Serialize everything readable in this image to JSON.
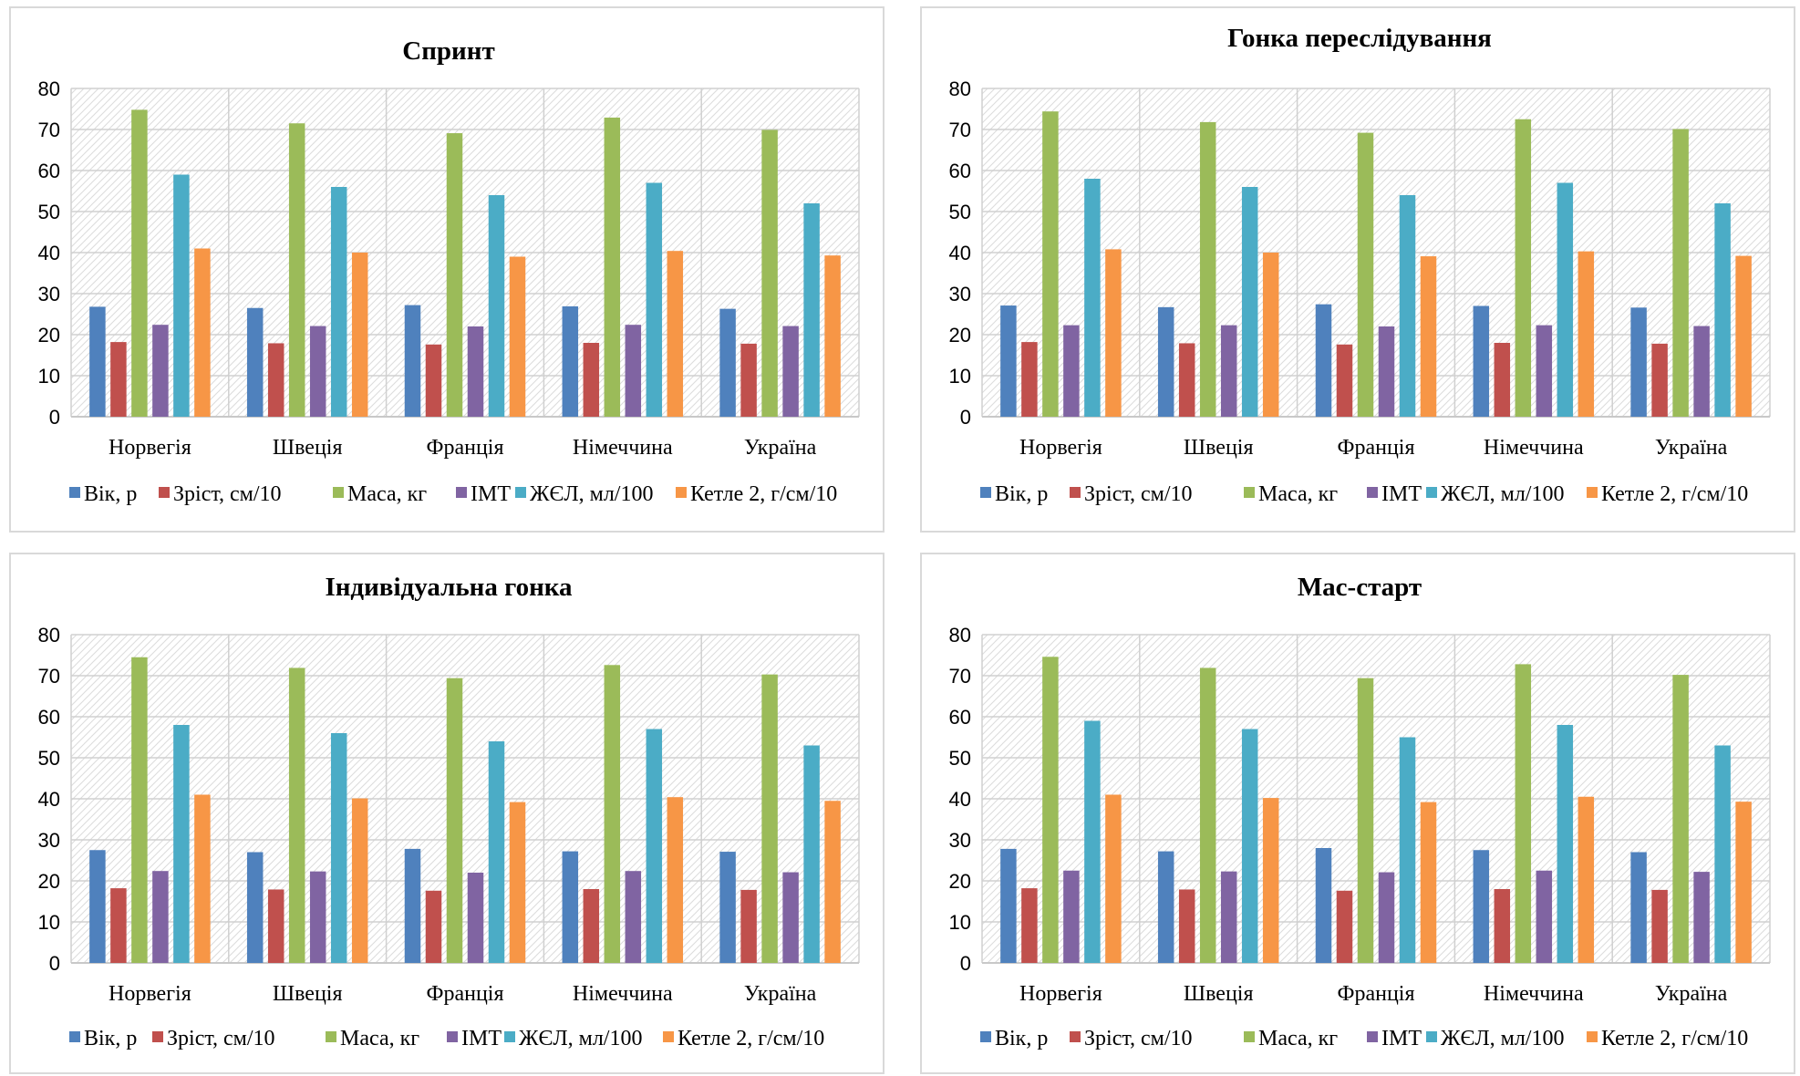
{
  "legend": [
    "Вік, р",
    "Зріст, см/10",
    "Маса, кг",
    "ІМТ",
    "ЖЄЛ, мл/100",
    "Кетле 2, г/см/10"
  ],
  "colors": [
    "#4f81bd",
    "#c0504d",
    "#9bbb59",
    "#8064a2",
    "#4bacc6",
    "#f79646"
  ],
  "chart_data": [
    {
      "type": "bar",
      "title": "Спринт",
      "categories": [
        "Норвегія",
        "Швеція",
        "Франція",
        "Німеччина",
        "Україна"
      ],
      "ylim": [
        0,
        80
      ],
      "yticks": [
        0,
        10,
        20,
        30,
        40,
        50,
        60,
        70,
        80
      ],
      "legend_position": "bottom",
      "series": [
        {
          "name": "Вік, р",
          "values": [
            26.8,
            26.5,
            27.2,
            26.9,
            26.3
          ]
        },
        {
          "name": "Зріст, см/10",
          "values": [
            18.2,
            17.9,
            17.6,
            18.0,
            17.8
          ]
        },
        {
          "name": "Маса, кг",
          "values": [
            74.8,
            71.5,
            69.1,
            72.9,
            69.9
          ]
        },
        {
          "name": "ІМТ",
          "values": [
            22.4,
            22.1,
            22.0,
            22.4,
            22.1
          ]
        },
        {
          "name": "ЖЄЛ, мл/100",
          "values": [
            59,
            56,
            54,
            57,
            52
          ]
        },
        {
          "name": "Кетле 2, г/см/10",
          "values": [
            41.0,
            40.0,
            39.0,
            40.4,
            39.3
          ]
        }
      ]
    },
    {
      "type": "bar",
      "title": "Гонка переслідування",
      "categories": [
        "Норвегія",
        "Швеція",
        "Франція",
        "Німеччина",
        "Україна"
      ],
      "ylim": [
        0,
        80
      ],
      "yticks": [
        0,
        10,
        20,
        30,
        40,
        50,
        60,
        70,
        80
      ],
      "legend_position": "bottom",
      "series": [
        {
          "name": "Вік, р",
          "values": [
            27.1,
            26.7,
            27.4,
            27.0,
            26.6
          ]
        },
        {
          "name": "Зріст, см/10",
          "values": [
            18.2,
            17.9,
            17.6,
            18.0,
            17.8
          ]
        },
        {
          "name": "Маса, кг",
          "values": [
            74.4,
            71.8,
            69.2,
            72.5,
            70.1
          ]
        },
        {
          "name": "ІМТ",
          "values": [
            22.3,
            22.3,
            22.0,
            22.3,
            22.1
          ]
        },
        {
          "name": "ЖЄЛ, мл/100",
          "values": [
            58,
            56,
            54,
            57,
            52
          ]
        },
        {
          "name": "Кетле 2, г/см/10",
          "values": [
            40.8,
            40.0,
            39.1,
            40.3,
            39.2
          ]
        }
      ]
    },
    {
      "type": "bar",
      "title": "Індивідуальна гонка",
      "categories": [
        "Норвегія",
        "Швеція",
        "Франція",
        "Німеччина",
        "Україна"
      ],
      "ylim": [
        0,
        80
      ],
      "yticks": [
        0,
        10,
        20,
        30,
        40,
        50,
        60,
        70,
        80
      ],
      "legend_position": "bottom",
      "series": [
        {
          "name": "Вік, р",
          "values": [
            27.5,
            27.0,
            27.8,
            27.2,
            27.1
          ]
        },
        {
          "name": "Зріст, см/10",
          "values": [
            18.2,
            17.9,
            17.6,
            18.0,
            17.8
          ]
        },
        {
          "name": "Маса, кг",
          "values": [
            74.5,
            71.9,
            69.4,
            72.6,
            70.3
          ]
        },
        {
          "name": "ІМТ",
          "values": [
            22.4,
            22.3,
            22.0,
            22.4,
            22.1
          ]
        },
        {
          "name": "ЖЄЛ, мл/100",
          "values": [
            58,
            56,
            54,
            57,
            53
          ]
        },
        {
          "name": "Кетле 2, г/см/10",
          "values": [
            41.0,
            40.1,
            39.2,
            40.4,
            39.5
          ]
        }
      ]
    },
    {
      "type": "bar",
      "title": "Мас-старт",
      "categories": [
        "Норвегія",
        "Швеція",
        "Франція",
        "Німеччина",
        "Україна"
      ],
      "ylim": [
        0,
        80
      ],
      "yticks": [
        0,
        10,
        20,
        30,
        40,
        50,
        60,
        70,
        80
      ],
      "legend_position": "bottom",
      "series": [
        {
          "name": "Вік, р",
          "values": [
            27.8,
            27.2,
            28.0,
            27.5,
            27.0
          ]
        },
        {
          "name": "Зріст, см/10",
          "values": [
            18.2,
            17.9,
            17.6,
            18.0,
            17.8
          ]
        },
        {
          "name": "Маса, кг",
          "values": [
            74.6,
            71.9,
            69.4,
            72.8,
            70.2
          ]
        },
        {
          "name": "ІМТ",
          "values": [
            22.5,
            22.3,
            22.1,
            22.5,
            22.2
          ]
        },
        {
          "name": "ЖЄЛ, мл/100",
          "values": [
            59,
            57,
            55,
            58,
            53
          ]
        },
        {
          "name": "Кетле 2, г/см/10",
          "values": [
            41.0,
            40.2,
            39.2,
            40.5,
            39.3
          ]
        }
      ]
    }
  ]
}
